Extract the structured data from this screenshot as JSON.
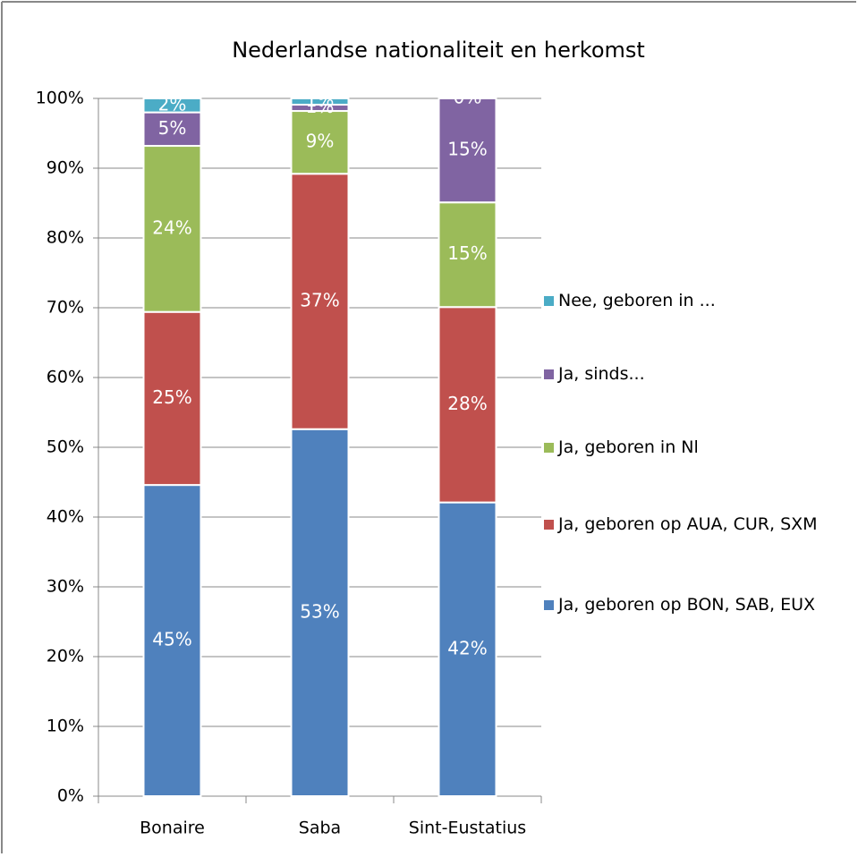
{
  "chart_data": {
    "type": "stacked_bar",
    "title": "Nederlandse nationaliteit en herkomst",
    "categories": [
      "Bonaire",
      "Saba",
      "Sint-Eustatius"
    ],
    "series": [
      {
        "name": "Ja, geboren op BON, SAB, EUX",
        "color": "#4f81bd",
        "values": [
          44.6,
          52.6,
          42.1
        ],
        "value_labels": [
          "45%",
          "53%",
          "42%"
        ]
      },
      {
        "name": "Ja, geboren op AUA, CUR, SXM",
        "color": "#c0504d",
        "values": [
          24.8,
          36.6,
          28.0
        ],
        "value_labels": [
          "25%",
          "37%",
          "28%"
        ]
      },
      {
        "name": "Ja, geboren in Nl",
        "color": "#9bbb59",
        "values": [
          23.8,
          9.0,
          15.0
        ],
        "value_labels": [
          "24%",
          "9%",
          "15%"
        ]
      },
      {
        "name": "Ja, sinds...",
        "color": "#8064a2",
        "values": [
          4.8,
          0.9,
          14.9
        ],
        "value_labels": [
          "5%",
          "1%",
          "15%"
        ]
      },
      {
        "name": "Nee, geboren in ...",
        "color": "#4bacc6",
        "values": [
          2.0,
          0.9,
          0
        ],
        "value_labels": [
          "2%",
          "1%",
          "0%"
        ]
      }
    ],
    "ylim": [
      0,
      100
    ],
    "yticks": [
      {
        "value": 0,
        "label": "0%"
      },
      {
        "value": 10,
        "label": "10%"
      },
      {
        "value": 20,
        "label": "20%"
      },
      {
        "value": 30,
        "label": "30%"
      },
      {
        "value": 40,
        "label": "40%"
      },
      {
        "value": 50,
        "label": "50%"
      },
      {
        "value": 60,
        "label": "60%"
      },
      {
        "value": 70,
        "label": "70%"
      },
      {
        "value": 80,
        "label": "80%"
      },
      {
        "value": 90,
        "label": "90%"
      },
      {
        "value": 100,
        "label": "100%"
      }
    ],
    "grid": true,
    "legend": "right"
  }
}
